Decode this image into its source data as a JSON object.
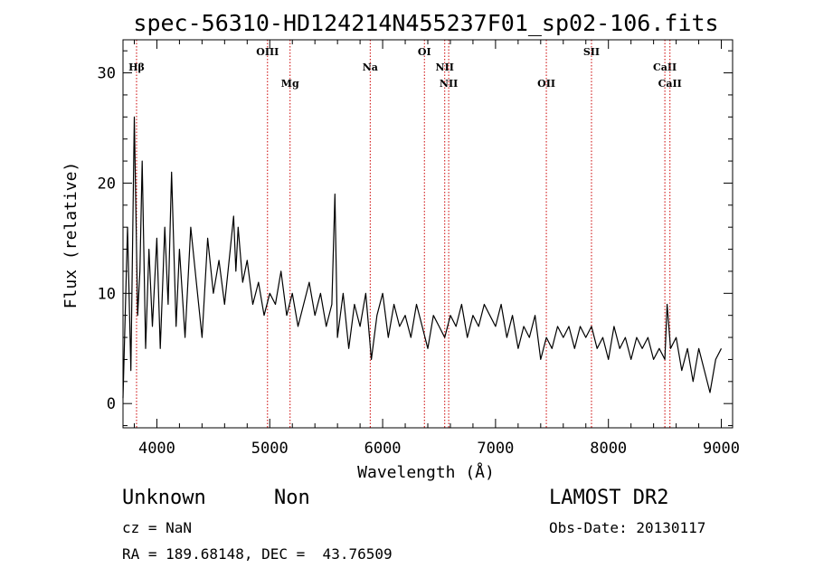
{
  "chart_data": {
    "type": "line",
    "title": "spec-56310-HD124214N455237F01_sp02-106.fits",
    "xlabel": "Wavelength (Å)",
    "ylabel": "Flux (relative)",
    "xlim": [
      3700,
      9100
    ],
    "ylim": [
      -2.2,
      33
    ],
    "xticks": [
      4000,
      5000,
      6000,
      7000,
      8000,
      9000
    ],
    "yticks": [
      0,
      10,
      20,
      30
    ],
    "grid": false,
    "series": [
      {
        "color": "#000000",
        "x": [
          3700,
          3740,
          3770,
          3800,
          3830,
          3850,
          3870,
          3900,
          3930,
          3960,
          4000,
          4030,
          4070,
          4100,
          4130,
          4170,
          4200,
          4250,
          4300,
          4350,
          4400,
          4450,
          4500,
          4550,
          4600,
          4650,
          4680,
          4700,
          4720,
          4760,
          4800,
          4850,
          4900,
          4950,
          5000,
          5050,
          5100,
          5150,
          5200,
          5250,
          5300,
          5350,
          5400,
          5450,
          5500,
          5550,
          5577,
          5600,
          5650,
          5700,
          5750,
          5800,
          5850,
          5900,
          5950,
          6000,
          6050,
          6100,
          6150,
          6200,
          6250,
          6300,
          6350,
          6400,
          6450,
          6500,
          6550,
          6600,
          6650,
          6700,
          6750,
          6800,
          6850,
          6900,
          6950,
          7000,
          7050,
          7100,
          7150,
          7200,
          7250,
          7300,
          7350,
          7400,
          7450,
          7500,
          7550,
          7600,
          7650,
          7700,
          7750,
          7800,
          7850,
          7900,
          7950,
          8000,
          8050,
          8100,
          8150,
          8200,
          8250,
          8300,
          8350,
          8400,
          8450,
          8500,
          8520,
          8550,
          8600,
          8650,
          8700,
          8750,
          8800,
          8850,
          8900,
          8950,
          9000
        ],
        "values": [
          0.5,
          16,
          3,
          26,
          8,
          12,
          22,
          5,
          14,
          7,
          15,
          5,
          16,
          9,
          21,
          7,
          14,
          6,
          16,
          11,
          6,
          15,
          10,
          13,
          9,
          14,
          17,
          12,
          16,
          11,
          13,
          9,
          11,
          8,
          10,
          9,
          12,
          8,
          10,
          7,
          9,
          11,
          8,
          10,
          7,
          9,
          19,
          6,
          10,
          5,
          9,
          7,
          10,
          4,
          8,
          10,
          6,
          9,
          7,
          8,
          6,
          9,
          7,
          5,
          8,
          7,
          6,
          8,
          7,
          9,
          6,
          8,
          7,
          9,
          8,
          7,
          9,
          6,
          8,
          5,
          7,
          6,
          8,
          4,
          6,
          5,
          7,
          6,
          7,
          5,
          7,
          6,
          7,
          5,
          6,
          4,
          7,
          5,
          6,
          4,
          6,
          5,
          6,
          4,
          5,
          4,
          9,
          5,
          6,
          3,
          5,
          2,
          5,
          3,
          1,
          4,
          5
        ]
      }
    ],
    "lines": [
      {
        "label": "Hβ",
        "x": 3820,
        "row": "upper"
      },
      {
        "label": "OIII",
        "x": 4980,
        "row": "top"
      },
      {
        "label": "Mg",
        "x": 5180,
        "row": "lower"
      },
      {
        "label": "Na",
        "x": 5890,
        "row": "upper"
      },
      {
        "label": "OI",
        "x": 6370,
        "row": "top"
      },
      {
        "label": "NII",
        "x": 6550,
        "row": "upper"
      },
      {
        "label": "NII",
        "x": 6585,
        "row": "lower"
      },
      {
        "label": "OII",
        "x": 7450,
        "row": "lower"
      },
      {
        "label": "SII",
        "x": 7850,
        "row": "top"
      },
      {
        "label": "CaII",
        "x": 8500,
        "row": "upper"
      },
      {
        "label": "CaII",
        "x": 8545,
        "row": "lower"
      }
    ],
    "line_color": "#cc0000"
  },
  "info": {
    "class_label": "Unknown",
    "subclass_label": "Non",
    "survey": "LAMOST DR2",
    "cz": "cz = NaN",
    "obs_date": "Obs-Date: 20130117",
    "coords": "RA = 189.68148, DEC =  43.76509"
  }
}
